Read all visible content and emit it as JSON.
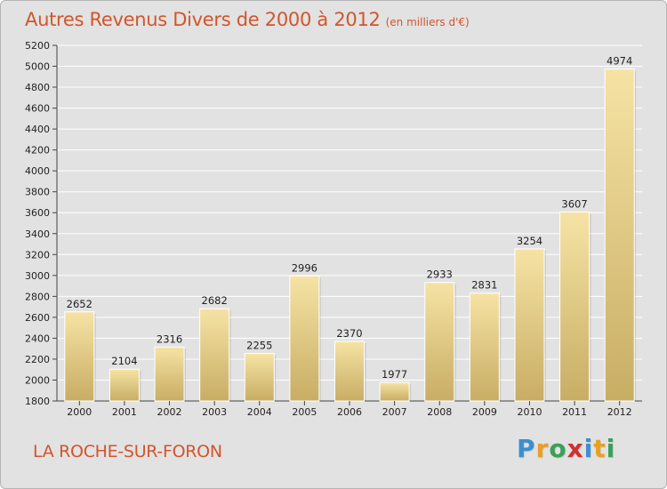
{
  "header": {
    "title": "Autres Revenus Divers de 2000 à 2012",
    "subtitle": "(en milliers d'€)"
  },
  "footer": {
    "city": "LA ROCHE-SUR-FORON",
    "logo": [
      "P",
      "r",
      "o",
      "x",
      "i",
      "t",
      "i"
    ],
    "logo_colors": [
      "#3a8fd0",
      "#e8a020",
      "#3aa055",
      "#d03030",
      "#3a8fd0",
      "#e8a020",
      "#3aa055"
    ]
  },
  "colors": {
    "title": "#d2552c",
    "background": "#e2e2e2",
    "bar_light": "#f6e3a4",
    "bar_dark": "#c8ad64"
  },
  "chart_data": {
    "type": "bar",
    "title": "Autres Revenus Divers de 2000 à 2012",
    "subtitle": "(en milliers d'€)",
    "categories": [
      "2000",
      "2001",
      "2002",
      "2003",
      "2004",
      "2005",
      "2006",
      "2007",
      "2008",
      "2009",
      "2010",
      "2011",
      "2012"
    ],
    "values": [
      2652,
      2104,
      2316,
      2682,
      2255,
      2996,
      2370,
      1977,
      2933,
      2831,
      3254,
      3607,
      4974
    ],
    "ylim": [
      1800,
      5200
    ],
    "yticks": [
      1800,
      2000,
      2200,
      2400,
      2600,
      2800,
      3000,
      3200,
      3400,
      3600,
      3800,
      4000,
      4200,
      4400,
      4600,
      4800,
      5000,
      5200
    ],
    "grid": true,
    "data_labels": true,
    "xlabel": "",
    "ylabel": ""
  }
}
